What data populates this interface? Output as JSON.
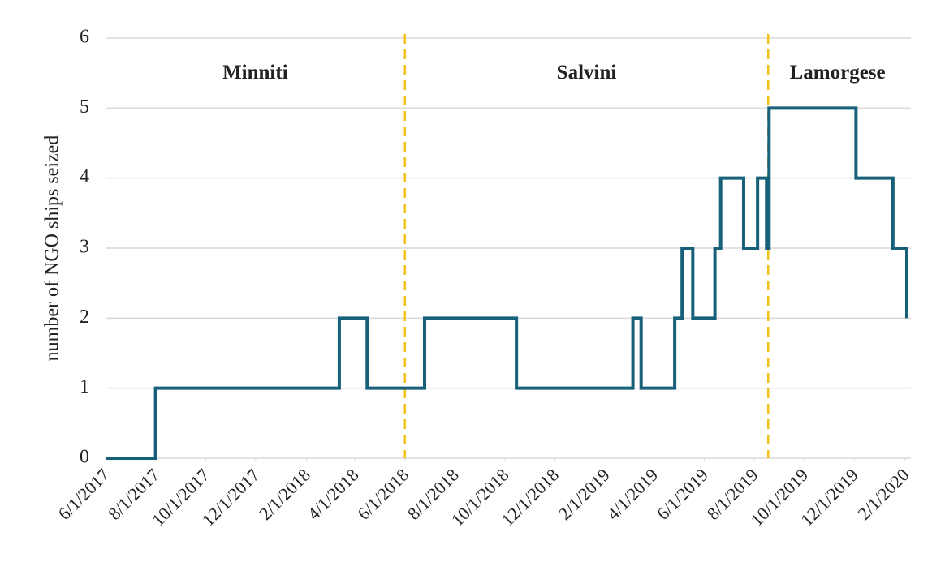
{
  "chart_data": {
    "type": "line",
    "step": "post",
    "y_label": "number of NGO ships seized",
    "x": [
      "2017-06-01",
      "2017-08-01",
      "2018-03-13",
      "2018-04-16",
      "2018-06-25",
      "2018-10-15",
      "2019-03-06",
      "2019-03-16",
      "2019-04-26",
      "2019-05-05",
      "2019-05-18",
      "2019-06-14",
      "2019-06-21",
      "2019-07-19",
      "2019-08-05",
      "2019-08-16",
      "2019-08-19",
      "2019-12-03",
      "2020-01-17",
      "2020-02-03"
    ],
    "series": [
      {
        "color": "#17607a",
        "values": [
          0,
          1,
          2,
          1,
          2,
          1,
          2,
          1,
          2,
          3,
          2,
          3,
          4,
          3,
          4,
          3,
          5,
          4,
          3,
          2
        ]
      }
    ],
    "xlim": [
      "2017-06-01",
      "2020-02-03"
    ],
    "xticks": [
      {
        "value": "2017-06-01",
        "label": "6/1/2017"
      },
      {
        "value": "2017-08-01",
        "label": "8/1/2017"
      },
      {
        "value": "2017-10-01",
        "label": "10/1/2017"
      },
      {
        "value": "2017-12-01",
        "label": "12/1/2017"
      },
      {
        "value": "2018-02-01",
        "label": "2/1/2018"
      },
      {
        "value": "2018-04-01",
        "label": "4/1/2018"
      },
      {
        "value": "2018-06-01",
        "label": "6/1/2018"
      },
      {
        "value": "2018-08-01",
        "label": "8/1/2018"
      },
      {
        "value": "2018-10-01",
        "label": "10/1/2018"
      },
      {
        "value": "2018-12-01",
        "label": "12/1/2018"
      },
      {
        "value": "2019-02-01",
        "label": "2/1/2019"
      },
      {
        "value": "2019-04-01",
        "label": "4/1/2019"
      },
      {
        "value": "2019-06-01",
        "label": "6/1/2019"
      },
      {
        "value": "2019-08-01",
        "label": "8/1/2019"
      },
      {
        "value": "2019-10-01",
        "label": "10/1/2019"
      },
      {
        "value": "2019-12-01",
        "label": "12/1/2019"
      },
      {
        "value": "2020-02-01",
        "label": "2/1/2020"
      }
    ],
    "ylim": [
      0,
      6
    ],
    "yticks": [
      0,
      1,
      2,
      3,
      4,
      5,
      6
    ],
    "grid": true,
    "period_lines": {
      "color": "#f2c21b",
      "x": [
        "2018-06-01",
        "2019-08-18"
      ]
    },
    "annotations": [
      "Minniti",
      "Salvini",
      "Lamorgese"
    ]
  }
}
